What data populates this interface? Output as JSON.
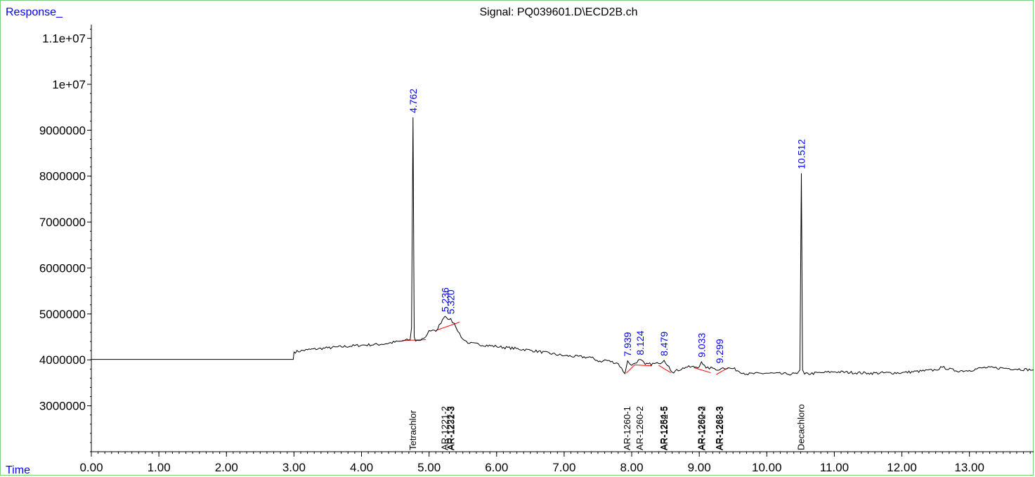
{
  "chart_data": {
    "type": "line",
    "title": "Signal: PQ039601.D\\ECD2B.ch",
    "ylabel": "Response_",
    "xlabel": "Time",
    "xlim": [
      0,
      13.95
    ],
    "ylim": [
      2000000,
      11300000
    ],
    "x_ticks": [
      0,
      1,
      2,
      3,
      4,
      5,
      6,
      7,
      8,
      9,
      10,
      11,
      12,
      13
    ],
    "x_tick_labels": [
      "0.00",
      "1.00",
      "2.00",
      "3.00",
      "4.00",
      "5.00",
      "6.00",
      "7.00",
      "8.00",
      "9.00",
      "10.00",
      "11.00",
      "12.00",
      "13.00"
    ],
    "y_ticks": [
      3000000,
      4000000,
      5000000,
      6000000,
      7000000,
      8000000,
      9000000,
      10000000,
      11000000
    ],
    "y_tick_labels": [
      "3000000",
      "4000000",
      "5000000",
      "6000000",
      "7000000",
      "8000000",
      "9000000",
      "1e+07",
      "1.1e+07"
    ],
    "series": [
      {
        "x": [
          0,
          2.99,
          3.0,
          3.2,
          3.5,
          4.0,
          4.3,
          4.6,
          4.72,
          4.74,
          4.762,
          4.78,
          4.8,
          4.85,
          4.95,
          5.0,
          5.1,
          5.2,
          5.236,
          5.3,
          5.32,
          5.4,
          5.5,
          5.6,
          6.0,
          6.5,
          7.0,
          7.4,
          7.55,
          7.6,
          7.8,
          7.9,
          7.939,
          8.0,
          8.124,
          8.2,
          8.4,
          8.479,
          8.55,
          8.6,
          8.8,
          9.0,
          9.033,
          9.1,
          9.2,
          9.299,
          9.35,
          9.5,
          9.7,
          10.0,
          10.3,
          10.45,
          10.49,
          10.512,
          10.53,
          10.56,
          10.8,
          11.0,
          11.5,
          12.0,
          12.5,
          12.6,
          12.8,
          13.0,
          13.2,
          13.5,
          13.95
        ],
        "y": [
          4010000,
          4010000,
          4170000,
          4220000,
          4260000,
          4320000,
          4340000,
          4410000,
          4440000,
          4700000,
          9280000,
          4500000,
          4410000,
          4420000,
          4500000,
          4640000,
          4620000,
          4880000,
          4950000,
          4880000,
          4900000,
          4700000,
          4450000,
          4360000,
          4290000,
          4210000,
          4090000,
          4050000,
          3950000,
          4000000,
          3920000,
          3700000,
          3980000,
          3880000,
          4010000,
          3900000,
          3920000,
          3990000,
          3860000,
          3730000,
          3840000,
          3850000,
          3960000,
          3820000,
          3820000,
          3780000,
          3830000,
          3810000,
          3690000,
          3710000,
          3690000,
          3700000,
          3780000,
          8060000,
          3780000,
          3690000,
          3720000,
          3740000,
          3710000,
          3720000,
          3780000,
          3840000,
          3760000,
          3770000,
          3830000,
          3820000,
          3780000
        ]
      }
    ],
    "baselines": [
      {
        "x": [
          4.6,
          4.95
        ],
        "y": [
          4420000,
          4440000
        ]
      },
      {
        "x": [
          5.1,
          5.45
        ],
        "y": [
          4640000,
          4820000
        ]
      },
      {
        "x": [
          7.92,
          8.05
        ],
        "y": [
          3710000,
          3900000
        ]
      },
      {
        "x": [
          8.05,
          8.3
        ],
        "y": [
          3890000,
          3870000
        ]
      },
      {
        "x": [
          8.4,
          8.58
        ],
        "y": [
          3880000,
          3720000
        ]
      },
      {
        "x": [
          8.92,
          9.17
        ],
        "y": [
          3830000,
          3720000
        ]
      },
      {
        "x": [
          9.25,
          9.43
        ],
        "y": [
          3680000,
          3830000
        ]
      }
    ],
    "peak_labels": [
      {
        "label": "4.762",
        "x": 4.762,
        "y": 9280000
      },
      {
        "label": "5.236",
        "x": 5.236,
        "y": 4950000
      },
      {
        "label": "5.320",
        "x": 5.32,
        "y": 4900000
      },
      {
        "label": "7.939",
        "x": 7.939,
        "y": 3980000
      },
      {
        "label": "8.124",
        "x": 8.124,
        "y": 4010000
      },
      {
        "label": "8.479",
        "x": 8.479,
        "y": 3990000
      },
      {
        "label": "9.033",
        "x": 9.033,
        "y": 3960000
      },
      {
        "label": "9.299",
        "x": 9.299,
        "y": 3830000
      },
      {
        "label": "10.512",
        "x": 10.512,
        "y": 8060000
      }
    ],
    "compound_labels": [
      {
        "label": "Tetrachlor",
        "x": 4.762
      },
      {
        "label": "AR-1221-2",
        "x": 5.236
      },
      {
        "label": "AR-1221-3",
        "x": 5.32
      },
      {
        "label": "AR-1232-3",
        "x": 5.33
      },
      {
        "label": "AR-1260-1",
        "x": 7.939
      },
      {
        "label": "AR-1260-2",
        "x": 8.124
      },
      {
        "label": "AR-1254-5",
        "x": 8.479
      },
      {
        "label": "AR-1262-5",
        "x": 8.49
      },
      {
        "label": "AR-1260-3",
        "x": 9.033
      },
      {
        "label": "AR-1262-2",
        "x": 9.043
      },
      {
        "label": "AR-1262-3",
        "x": 9.299
      },
      {
        "label": "AR-1268-3",
        "x": 9.309
      },
      {
        "label": "Decachloro",
        "x": 10.512
      }
    ],
    "colors": {
      "signal": "#000000",
      "baseline": "#ff0000",
      "peak_label": "#0000ff",
      "axis_title": "#0000ff"
    }
  }
}
